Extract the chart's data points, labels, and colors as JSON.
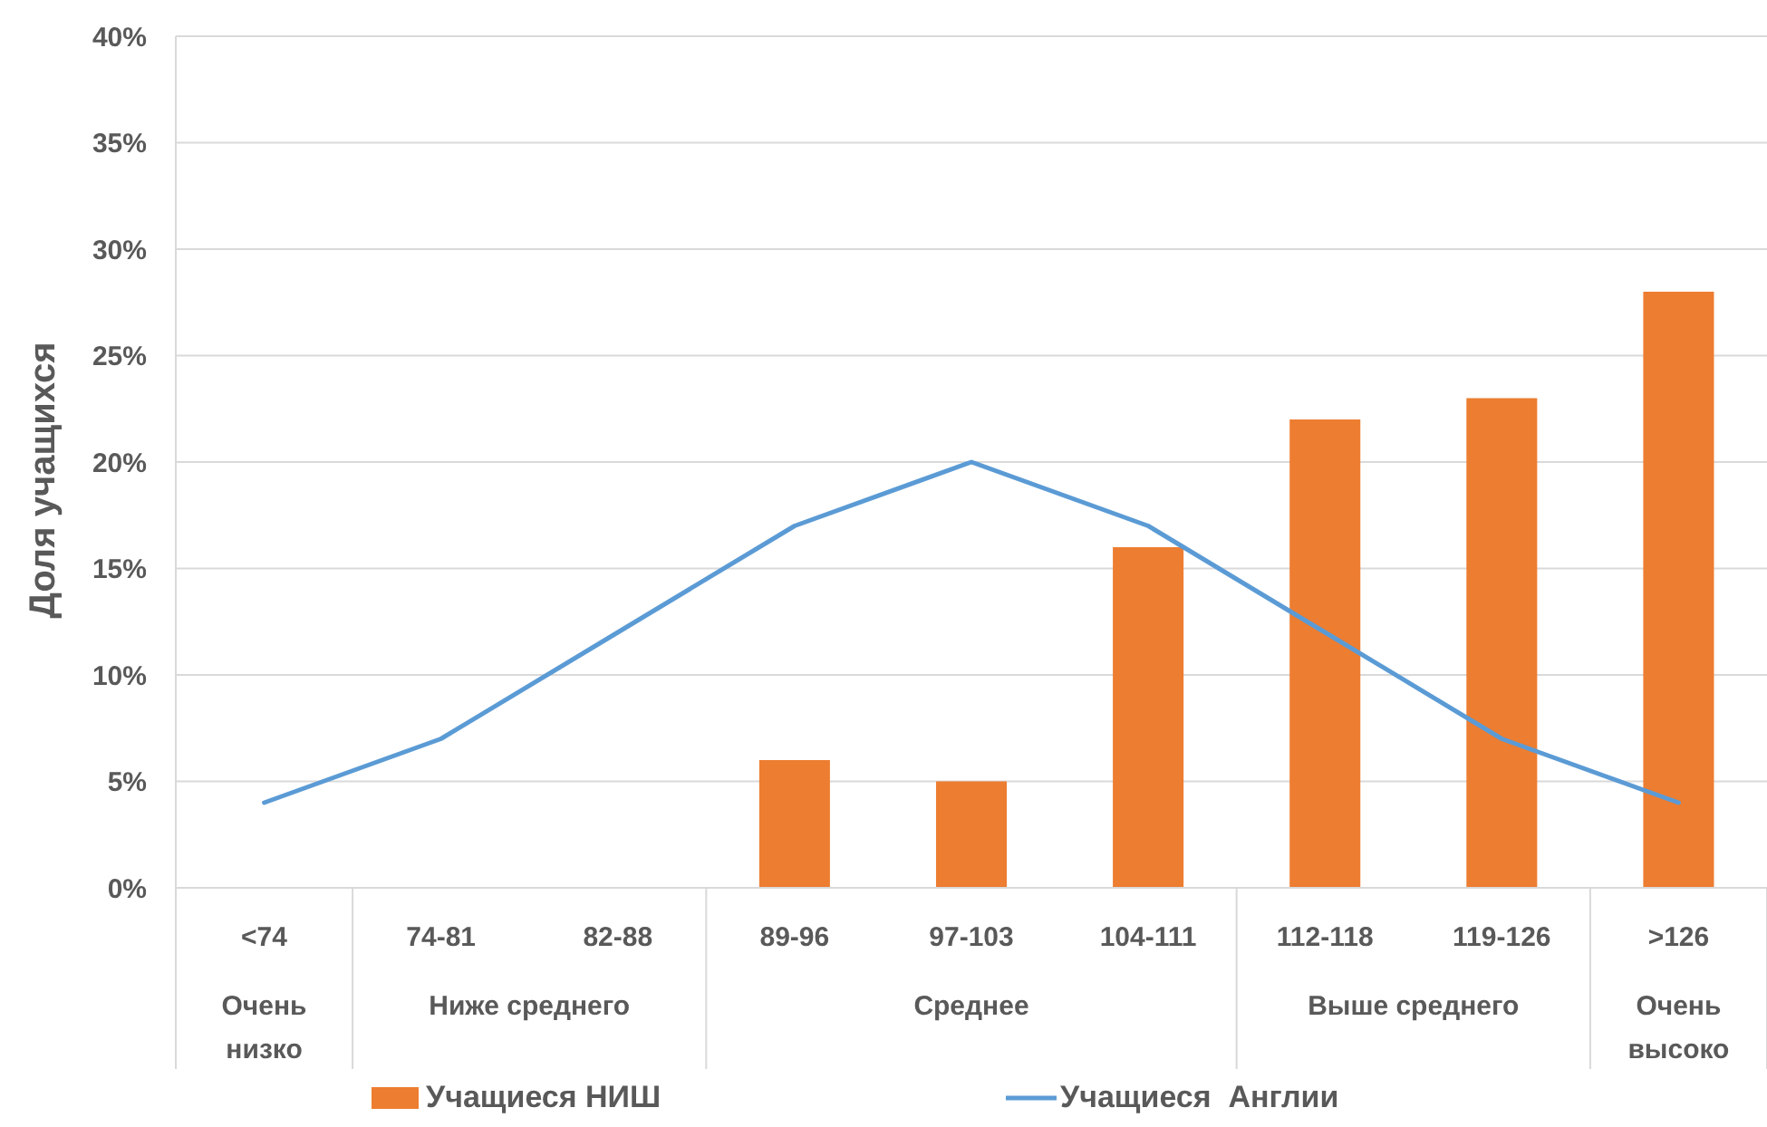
{
  "chart_data": {
    "type": "bar",
    "ylabel": "Доля учащихся",
    "categories": [
      "<74",
      "74-81",
      "82-88",
      "89-96",
      "97-103",
      "104-111",
      "112-118",
      "119-126",
      ">126"
    ],
    "series": [
      {
        "name": "Учащиеся НИШ",
        "color": "#ed7d31",
        "values": [
          null,
          null,
          null,
          6,
          5,
          16,
          22,
          23,
          28
        ]
      },
      {
        "name": "Учащиеся  Англии",
        "type": "line",
        "color": "#5b9bd5",
        "values": [
          4,
          7,
          12,
          17,
          20,
          17,
          12,
          7,
          4
        ]
      }
    ],
    "annotations": [
      "Очень низко",
      "Ниже среднего",
      "Среднее",
      "Выше среднего",
      "Очень высоко"
    ],
    "ylim": [
      0,
      40
    ],
    "yticks": [
      {
        "value": 0,
        "label": "0%"
      },
      {
        "value": 5,
        "label": "5%"
      },
      {
        "value": 10,
        "label": "10%"
      },
      {
        "value": 15,
        "label": "15%"
      },
      {
        "value": 20,
        "label": "20%"
      },
      {
        "value": 25,
        "label": "25%"
      },
      {
        "value": 30,
        "label": "30%"
      },
      {
        "value": 35,
        "label": "35%"
      },
      {
        "value": 40,
        "label": "40%"
      }
    ],
    "grid": "y",
    "legend": "bottom",
    "marker": "none",
    "line_style": "solid"
  }
}
